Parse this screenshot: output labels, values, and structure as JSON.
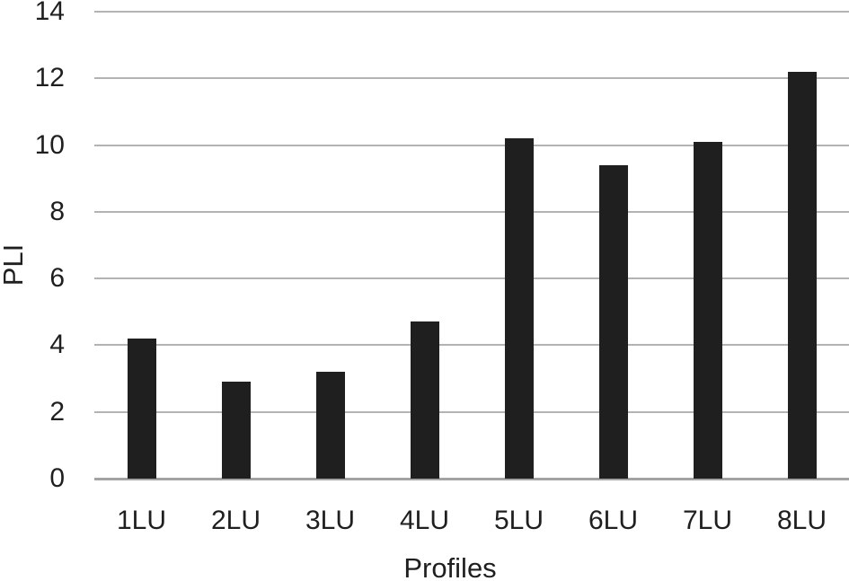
{
  "chart_data": {
    "type": "bar",
    "title": "",
    "xlabel": "Profiles",
    "ylabel": "PLI",
    "categories": [
      "1LU",
      "2LU",
      "3LU",
      "4LU",
      "5LU",
      "6LU",
      "7LU",
      "8LU"
    ],
    "values": [
      4.2,
      2.9,
      3.2,
      4.7,
      10.2,
      9.4,
      10.1,
      12.2
    ],
    "ylim": [
      0,
      14
    ],
    "yticks": [
      0,
      2,
      4,
      6,
      8,
      10,
      12,
      14
    ],
    "grid": true,
    "legend_position": "none",
    "bar_color": "#1f1f1f",
    "gridline_color": "#b3b3b3",
    "baseline_color": "#a3a3a3",
    "text_color": "#1f1f1f",
    "background_color": "#ffffff"
  }
}
